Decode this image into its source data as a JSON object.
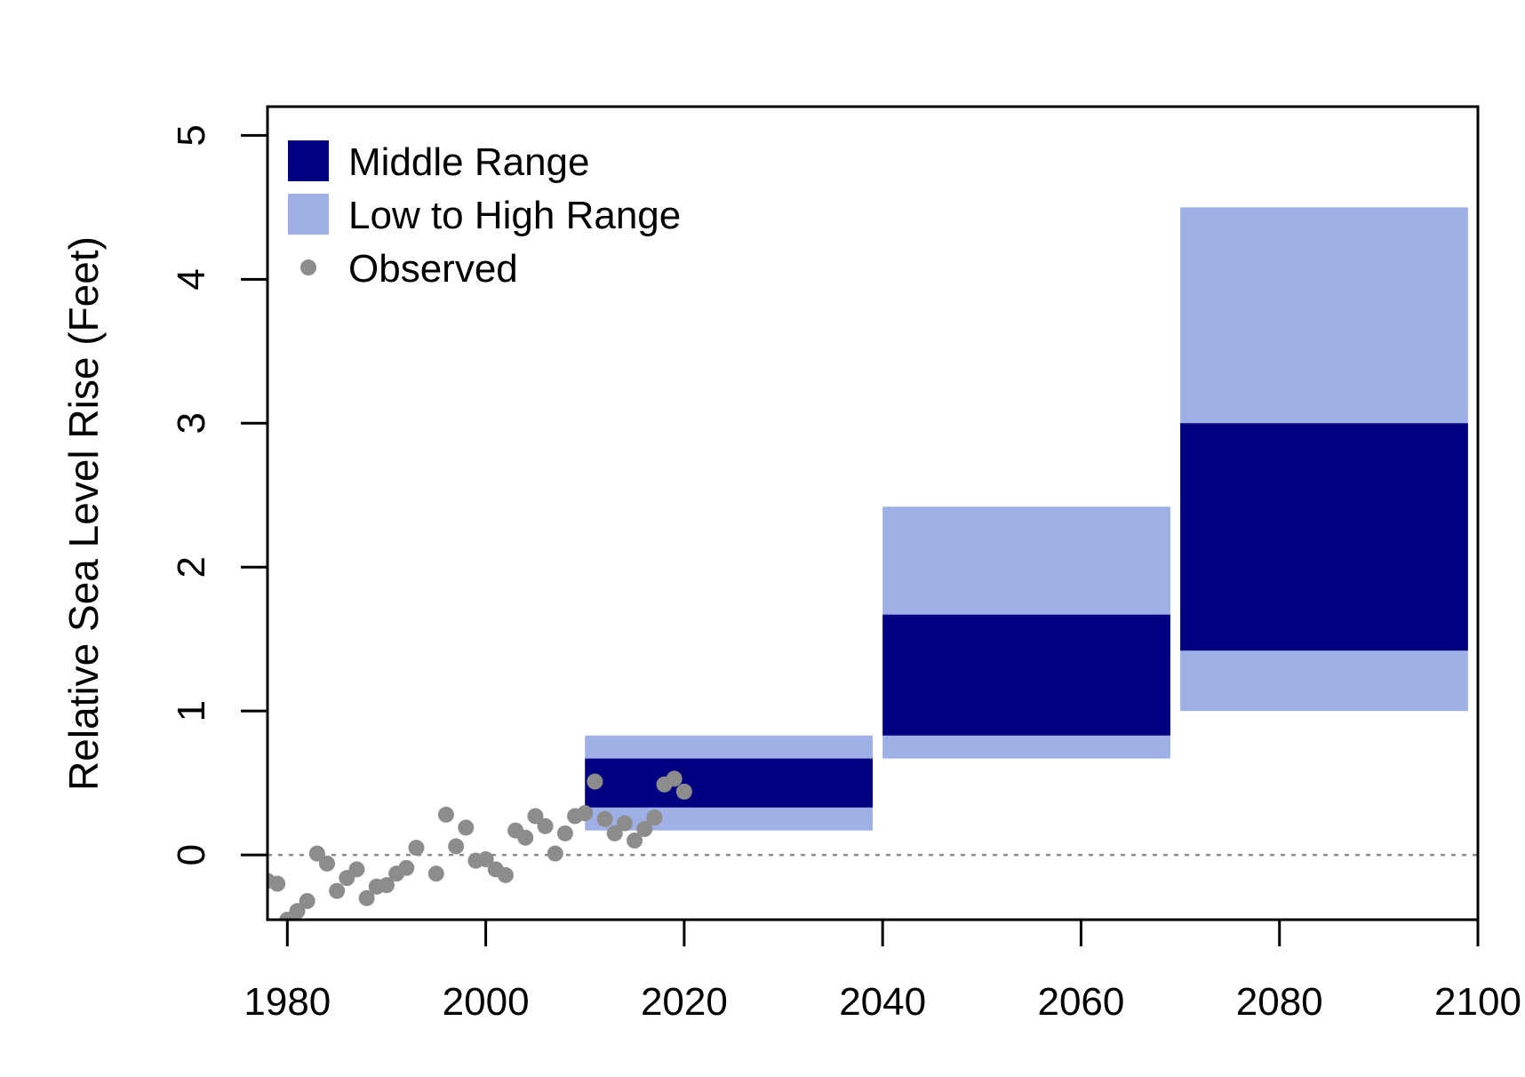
{
  "chart_data": {
    "type": "bar",
    "title": "",
    "xlabel": "",
    "ylabel": "Relative Sea Level Rise (Feet)",
    "xlim": [
      1978,
      2100
    ],
    "ylim": [
      -0.45,
      5.2
    ],
    "x_ticks": [
      1980,
      2000,
      2020,
      2040,
      2060,
      2080,
      2100
    ],
    "x_tick_labels": [
      "1980",
      "2000",
      "2020",
      "2040",
      "2060",
      "2080",
      "2100"
    ],
    "y_ticks": [
      0,
      1,
      2,
      3,
      4,
      5
    ],
    "y_tick_labels": [
      "0",
      "1",
      "2",
      "3",
      "4",
      "5"
    ],
    "grid": false,
    "reference_line": {
      "y": 0,
      "style": "dotted",
      "color": "#8c8c8c"
    },
    "legend": {
      "position": "top-left",
      "entries": [
        {
          "label": "Middle Range",
          "symbol": "square",
          "color": "#000080"
        },
        {
          "label": "Low to High Range",
          "symbol": "square",
          "color": "#9fb0e6"
        },
        {
          "label": "Observed",
          "symbol": "circle",
          "color": "#8c8c8c"
        }
      ]
    },
    "series": [
      {
        "name": "Low to High Range",
        "color": "#9fb0e6",
        "ranges": [
          {
            "x_start": 2010,
            "x_end": 2039,
            "low": 0.17,
            "high": 0.83
          },
          {
            "x_start": 2040,
            "x_end": 2069,
            "low": 0.67,
            "high": 2.42
          },
          {
            "x_start": 2070,
            "x_end": 2099,
            "low": 1.0,
            "high": 4.5
          }
        ]
      },
      {
        "name": "Middle Range",
        "color": "#000080",
        "ranges": [
          {
            "x_start": 2010,
            "x_end": 2039,
            "low": 0.33,
            "high": 0.67
          },
          {
            "x_start": 2040,
            "x_end": 2069,
            "low": 0.83,
            "high": 1.67
          },
          {
            "x_start": 2070,
            "x_end": 2099,
            "low": 1.42,
            "high": 3.0
          }
        ]
      },
      {
        "name": "Observed",
        "color": "#8c8c8c",
        "points": [
          {
            "x": 1978,
            "y": -0.18
          },
          {
            "x": 1979,
            "y": -0.2
          },
          {
            "x": 1980,
            "y": -0.45
          },
          {
            "x": 1981,
            "y": -0.39
          },
          {
            "x": 1982,
            "y": -0.32
          },
          {
            "x": 1983,
            "y": 0.01
          },
          {
            "x": 1984,
            "y": -0.06
          },
          {
            "x": 1985,
            "y": -0.25
          },
          {
            "x": 1986,
            "y": -0.16
          },
          {
            "x": 1987,
            "y": -0.1
          },
          {
            "x": 1988,
            "y": -0.3
          },
          {
            "x": 1989,
            "y": -0.22
          },
          {
            "x": 1990,
            "y": -0.21
          },
          {
            "x": 1991,
            "y": -0.13
          },
          {
            "x": 1992,
            "y": -0.09
          },
          {
            "x": 1993,
            "y": 0.05
          },
          {
            "x": 1995,
            "y": -0.13
          },
          {
            "x": 1996,
            "y": 0.28
          },
          {
            "x": 1997,
            "y": 0.06
          },
          {
            "x": 1998,
            "y": 0.19
          },
          {
            "x": 1999,
            "y": -0.04
          },
          {
            "x": 2000,
            "y": -0.03
          },
          {
            "x": 2001,
            "y": -0.1
          },
          {
            "x": 2002,
            "y": -0.14
          },
          {
            "x": 2003,
            "y": 0.17
          },
          {
            "x": 2004,
            "y": 0.12
          },
          {
            "x": 2005,
            "y": 0.27
          },
          {
            "x": 2006,
            "y": 0.2
          },
          {
            "x": 2007,
            "y": 0.01
          },
          {
            "x": 2008,
            "y": 0.15
          },
          {
            "x": 2009,
            "y": 0.27
          },
          {
            "x": 2010,
            "y": 0.29
          },
          {
            "x": 2011,
            "y": 0.51
          },
          {
            "x": 2012,
            "y": 0.25
          },
          {
            "x": 2013,
            "y": 0.15
          },
          {
            "x": 2014,
            "y": 0.22
          },
          {
            "x": 2015,
            "y": 0.1
          },
          {
            "x": 2016,
            "y": 0.18
          },
          {
            "x": 2017,
            "y": 0.26
          },
          {
            "x": 2018,
            "y": 0.49
          },
          {
            "x": 2019,
            "y": 0.53
          },
          {
            "x": 2020,
            "y": 0.44
          }
        ]
      }
    ]
  }
}
